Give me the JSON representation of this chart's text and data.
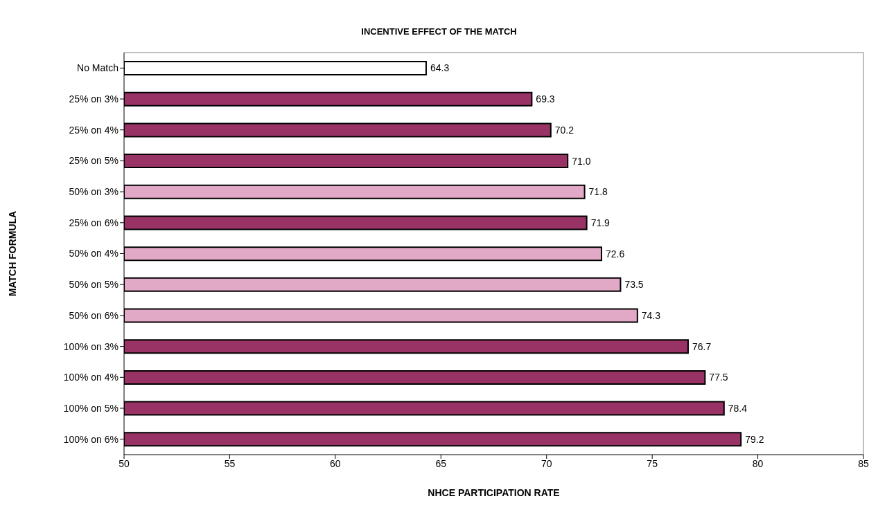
{
  "chart_data": {
    "type": "bar",
    "orientation": "horizontal",
    "title": "INCENTIVE EFFECT OF THE MATCH",
    "xlabel": "NHCE PARTICIPATION RATE",
    "ylabel": "MATCH FORMULA",
    "categories": [
      "No Match",
      "25% on 3%",
      "25% on 4%",
      "25% on 5%",
      "50% on 3%",
      "25% on 6%",
      "50% on 4%",
      "50% on 5%",
      "50% on 6%",
      "100% on 3%",
      "100% on 4%",
      "100% on 5%",
      "100% on 6%"
    ],
    "values": [
      64.3,
      69.3,
      70.2,
      71.0,
      71.8,
      71.9,
      72.6,
      73.5,
      74.3,
      76.7,
      77.5,
      78.4,
      79.2
    ],
    "value_labels": [
      "64.3",
      "69.3",
      "70.2",
      "71.0",
      "71.8",
      "71.9",
      "72.6",
      "73.5",
      "74.3",
      "76.7",
      "77.5",
      "78.4",
      "79.2"
    ],
    "colors": [
      "#ffffff",
      "#993366",
      "#993366",
      "#993366",
      "#e2a9c6",
      "#993366",
      "#e2a9c6",
      "#e2a9c6",
      "#e2a9c6",
      "#993366",
      "#993366",
      "#993366",
      "#993366"
    ],
    "xlim": [
      50,
      85
    ],
    "xticks": [
      50,
      55,
      60,
      65,
      70,
      75,
      80,
      85
    ],
    "grid": false
  }
}
